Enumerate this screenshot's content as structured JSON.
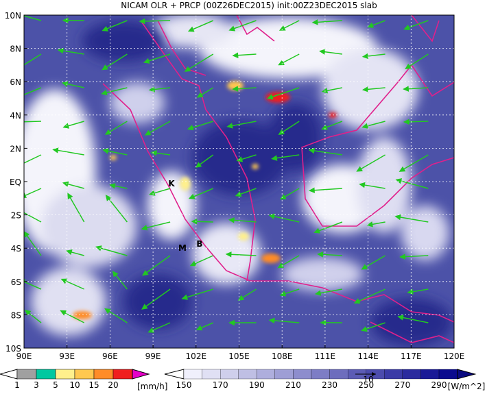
{
  "title": "NICAM OLR + PRCP (00Z26DEC2015) init:00Z23DEC2015 slab",
  "lat_labels": [
    "10N",
    "8N",
    "6N",
    "4N",
    "2N",
    "EQ",
    "2S",
    "4S",
    "6S",
    "8S",
    "10S"
  ],
  "lon_labels": [
    "90E",
    "93E",
    "96E",
    "99E",
    "102E",
    "105E",
    "108E",
    "111E",
    "114E",
    "117E",
    "120E"
  ],
  "stations": [
    "K",
    "M",
    "B"
  ],
  "precip_legend": {
    "labels": [
      "1",
      "3",
      "5",
      "10",
      "15",
      "20"
    ],
    "unit": "[mm/h]"
  },
  "olr_legend": {
    "labels": [
      "150",
      "170",
      "190",
      "210",
      "230",
      "250",
      "270",
      "290"
    ],
    "unit": "[W/m^2]"
  },
  "vector_scale": "10"
}
